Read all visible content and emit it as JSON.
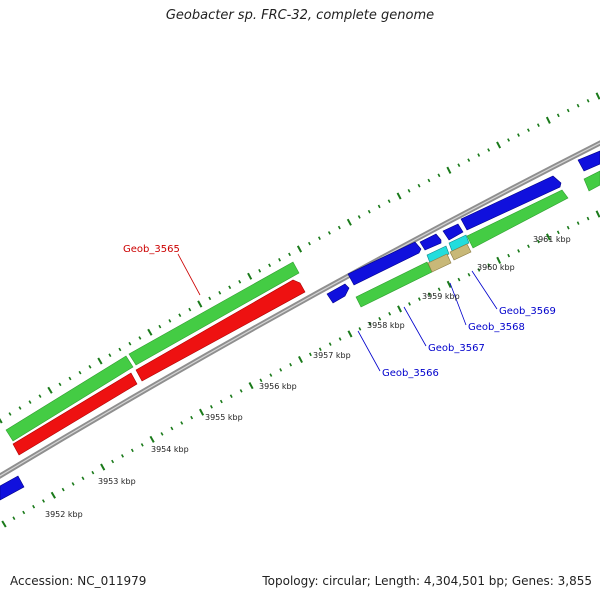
{
  "title": "Geobacter sp. FRC-32, complete genome",
  "footer": {
    "accession": "Accession: NC_011979",
    "summary": "Topology: circular; Length: 4,304,501 bp; Genes: 3,855"
  },
  "colors": {
    "backbone": "#8f8f8f",
    "tick": "#1a7a1a",
    "cds_forward": "#1010dd",
    "cds_reverse": "#ee1111",
    "gene_green": "#44cc44",
    "cyan": "#22dddd",
    "tan": "#c8b878",
    "label_blue": "#0000cc",
    "label_red": "#cc0000"
  },
  "ticks": [
    {
      "label": "3952 kbp"
    },
    {
      "label": "3953 kbp"
    },
    {
      "label": "3954 kbp"
    },
    {
      "label": "3955 kbp"
    },
    {
      "label": "3956 kbp"
    },
    {
      "label": "3957 kbp"
    },
    {
      "label": "3958 kbp"
    },
    {
      "label": "3959 kbp"
    },
    {
      "label": "3960 kbp"
    },
    {
      "label": "3961 kbp"
    }
  ],
  "gene_labels": [
    {
      "name": "Geob_3565",
      "strand": "reverse"
    },
    {
      "name": "Geob_3566",
      "strand": "forward"
    },
    {
      "name": "Geob_3567",
      "strand": "forward"
    },
    {
      "name": "Geob_3568",
      "strand": "forward"
    },
    {
      "name": "Geob_3569",
      "strand": "forward"
    }
  ]
}
